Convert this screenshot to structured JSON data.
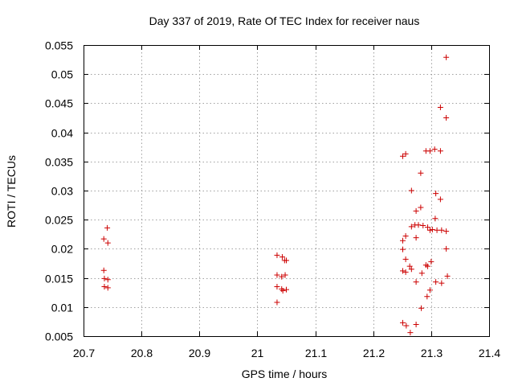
{
  "chart_data": {
    "type": "scatter",
    "title": "Day 337 of 2019, Rate Of TEC Index for receiver naus",
    "xlabel": "GPS time / hours",
    "ylabel": "ROTI / TECUs",
    "xlim": [
      20.7,
      21.4
    ],
    "ylim": [
      0.005,
      0.055
    ],
    "xticks": [
      "20.7",
      "20.8",
      "20.9",
      "21",
      "21.1",
      "21.2",
      "21.3",
      "21.4"
    ],
    "yticks": [
      "0.005",
      "0.01",
      "0.015",
      "0.02",
      "0.025",
      "0.03",
      "0.035",
      "0.04",
      "0.045",
      "0.05",
      "0.055"
    ],
    "grid": true,
    "marker": "+",
    "color": "#cc0000",
    "series": [
      {
        "name": "ROTI",
        "points": [
          [
            20.735,
            0.0217
          ],
          [
            20.741,
            0.0236
          ],
          [
            20.742,
            0.021
          ],
          [
            20.735,
            0.0163
          ],
          [
            20.736,
            0.0149
          ],
          [
            20.742,
            0.0147
          ],
          [
            20.736,
            0.0135
          ],
          [
            20.742,
            0.0133
          ],
          [
            21.034,
            0.0189
          ],
          [
            21.043,
            0.0186
          ],
          [
            21.047,
            0.018
          ],
          [
            21.05,
            0.018
          ],
          [
            21.034,
            0.0155
          ],
          [
            21.042,
            0.0152
          ],
          [
            21.048,
            0.0155
          ],
          [
            21.034,
            0.0135
          ],
          [
            21.042,
            0.0131
          ],
          [
            21.044,
            0.0128
          ],
          [
            21.05,
            0.013
          ],
          [
            21.034,
            0.0108
          ],
          [
            21.251,
            0.0359
          ],
          [
            21.256,
            0.0363
          ],
          [
            21.282,
            0.033
          ],
          [
            21.266,
            0.03
          ],
          [
            21.291,
            0.0368
          ],
          [
            21.298,
            0.0368
          ],
          [
            21.306,
            0.0371
          ],
          [
            21.316,
            0.0368
          ],
          [
            21.316,
            0.0443
          ],
          [
            21.326,
            0.0529
          ],
          [
            21.326,
            0.0425
          ],
          [
            21.308,
            0.0295
          ],
          [
            21.316,
            0.0285
          ],
          [
            21.274,
            0.0265
          ],
          [
            21.282,
            0.0271
          ],
          [
            21.307,
            0.0252
          ],
          [
            21.251,
            0.0214
          ],
          [
            21.256,
            0.0222
          ],
          [
            21.266,
            0.0238
          ],
          [
            21.272,
            0.0241
          ],
          [
            21.278,
            0.0241
          ],
          [
            21.286,
            0.024
          ],
          [
            21.294,
            0.0237
          ],
          [
            21.298,
            0.0232
          ],
          [
            21.302,
            0.0233
          ],
          [
            21.31,
            0.0232
          ],
          [
            21.318,
            0.0232
          ],
          [
            21.326,
            0.023
          ],
          [
            21.274,
            0.0219
          ],
          [
            21.251,
            0.0199
          ],
          [
            21.326,
            0.02
          ],
          [
            21.256,
            0.0182
          ],
          [
            21.263,
            0.017
          ],
          [
            21.291,
            0.0172
          ],
          [
            21.294,
            0.017
          ],
          [
            21.3,
            0.0178
          ],
          [
            21.251,
            0.0162
          ],
          [
            21.256,
            0.016
          ],
          [
            21.266,
            0.0165
          ],
          [
            21.284,
            0.0158
          ],
          [
            21.274,
            0.0143
          ],
          [
            21.308,
            0.0143
          ],
          [
            21.318,
            0.0141
          ],
          [
            21.328,
            0.0153
          ],
          [
            21.298,
            0.0129
          ],
          [
            21.293,
            0.0118
          ],
          [
            21.283,
            0.0098
          ],
          [
            21.251,
            0.0073
          ],
          [
            21.257,
            0.0068
          ],
          [
            21.264,
            0.0056
          ],
          [
            21.274,
            0.007
          ]
        ]
      }
    ]
  }
}
